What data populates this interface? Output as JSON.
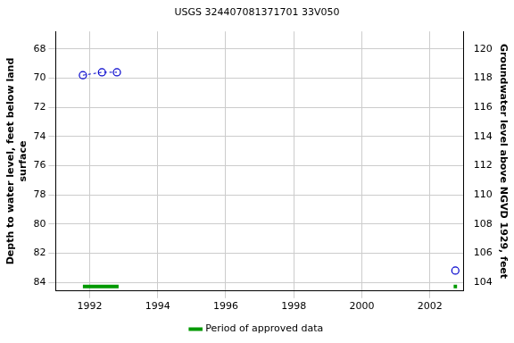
{
  "chart_data": {
    "type": "line",
    "title": "USGS 324407081371701 33V050",
    "y_label": [
      "Depth to water level, feet below land",
      "surface"
    ],
    "y2_label": "Groundwater level above NGVD 1929, feet",
    "xlim": [
      1991.0,
      2003.0
    ],
    "xticks": [
      1992,
      1994,
      1996,
      1998,
      2000,
      2002
    ],
    "ylim": [
      66.8,
      84.6
    ],
    "yticks": [
      68,
      70,
      72,
      74,
      76,
      78,
      80,
      82,
      84
    ],
    "y2lim": [
      103.4,
      121.2
    ],
    "y2ticks": [
      104,
      106,
      108,
      110,
      112,
      114,
      116,
      118,
      120
    ],
    "series": [
      {
        "color": "#0000cc",
        "marker": "circle",
        "line_style": "dashed",
        "x": [
          1991.8,
          1992.36,
          1992.8
        ],
        "values": [
          69.8,
          69.6,
          69.6
        ]
      },
      {
        "color": "#0000cc",
        "marker": "circle",
        "line_style": "dashed",
        "x": [
          2002.75
        ],
        "values": [
          83.2
        ]
      }
    ],
    "approved_periods": {
      "name": "Period of approved data",
      "color": "#009900",
      "ranges": [
        [
          1991.8,
          1992.85
        ],
        [
          2002.7,
          2002.8
        ]
      ]
    },
    "legend": "bottom",
    "grid": true
  }
}
